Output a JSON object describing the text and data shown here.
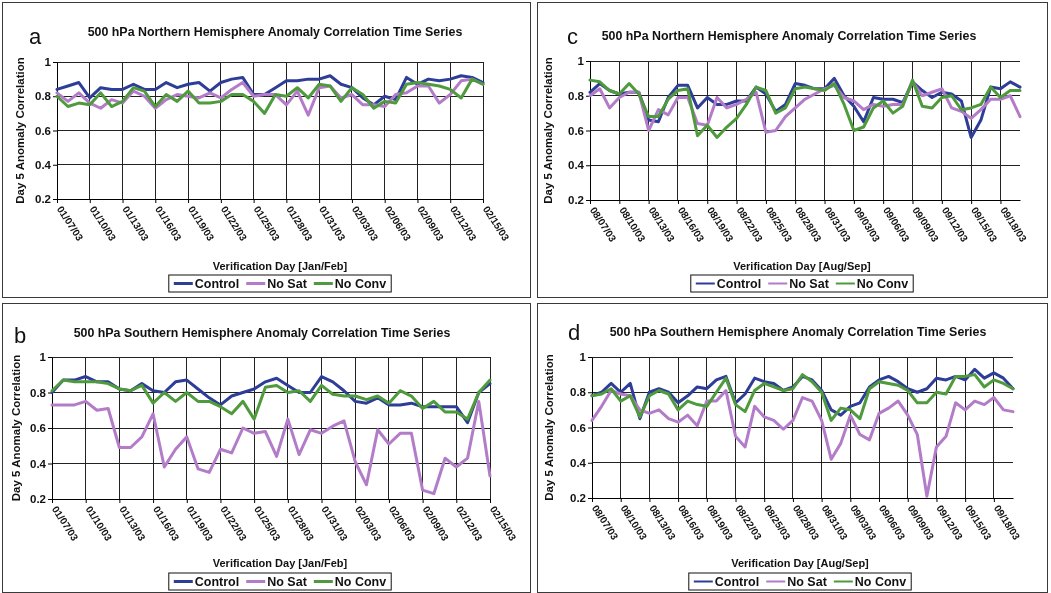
{
  "chart_data": [
    {
      "type": "line",
      "title": "500 hPa Northern Hemisphere Anomaly Correlation Time Series",
      "xlabel": "Verification Day [Jan/Feb]",
      "ylabel": "Day 5 Anomaly Correlation",
      "annotations": [
        "a"
      ],
      "categories": [
        "01/07/03",
        null,
        null,
        "01/10/03",
        null,
        null,
        "01/13/03",
        null,
        null,
        "01/16/03",
        null,
        null,
        "01/19/03",
        null,
        null,
        "01/22/03",
        null,
        null,
        "01/25/03",
        null,
        null,
        "01/28/03",
        null,
        null,
        "01/31/03",
        null,
        null,
        "02/03/03",
        null,
        null,
        "02/06/03",
        null,
        null,
        "02/09/03",
        null,
        null,
        "02/12/03",
        null,
        null,
        "02/15/03"
      ],
      "series": [
        {
          "name": "Control",
          "color": "#2e3d98",
          "values": [
            0.84,
            0.86,
            0.88,
            0.79,
            0.85,
            0.84,
            0.84,
            0.87,
            0.84,
            0.84,
            0.88,
            0.85,
            0.87,
            0.88,
            0.83,
            0.88,
            0.9,
            0.91,
            0.81,
            0.81,
            0.85,
            0.89,
            0.89,
            0.9,
            0.9,
            0.92,
            0.87,
            0.85,
            0.79,
            0.75,
            0.8,
            0.78,
            0.91,
            0.87,
            0.9,
            0.89,
            0.9,
            0.92,
            0.91,
            0.88
          ]
        },
        {
          "name": "No Sat",
          "color": "#b37cc8",
          "values": [
            0.82,
            0.77,
            0.82,
            0.76,
            0.73,
            0.78,
            0.76,
            0.83,
            0.8,
            0.73,
            0.78,
            0.81,
            0.8,
            0.79,
            0.82,
            0.79,
            0.84,
            0.88,
            0.8,
            0.81,
            0.81,
            0.75,
            0.83,
            0.69,
            0.85,
            0.86,
            0.79,
            0.81,
            0.75,
            0.75,
            0.74,
            0.81,
            0.82,
            0.86,
            0.86,
            0.76,
            0.81,
            0.89,
            0.9,
            0.87
          ]
        },
        {
          "name": "No Conv",
          "color": "#4e9a3c",
          "values": [
            0.8,
            0.74,
            0.76,
            0.75,
            0.82,
            0.74,
            0.77,
            0.85,
            0.83,
            0.74,
            0.81,
            0.77,
            0.83,
            0.76,
            0.76,
            0.77,
            0.81,
            0.81,
            0.77,
            0.7,
            0.81,
            0.8,
            0.85,
            0.79,
            0.87,
            0.86,
            0.77,
            0.85,
            0.81,
            0.73,
            0.77,
            0.76,
            0.87,
            0.88,
            0.87,
            0.86,
            0.84,
            0.79,
            0.9,
            0.87
          ]
        }
      ],
      "ylim": [
        0.2,
        1
      ],
      "yticks": [
        0.2,
        0.4,
        0.6,
        0.8,
        1
      ],
      "grid": true,
      "legend": "bottom"
    },
    {
      "type": "line",
      "title": "500 hPa Northern Hemisphere Anomaly Correlation Time Series",
      "xlabel": "Verification Day [Aug/Sep]",
      "ylabel": "Day 5 Anomaly Correlation",
      "annotations": [
        "c"
      ],
      "categories": [
        "08/07/03",
        null,
        null,
        "08/10/03",
        null,
        null,
        "08/13/03",
        null,
        null,
        "08/16/03",
        null,
        null,
        "08/19/03",
        null,
        null,
        "08/22/03",
        null,
        null,
        "08/25/03",
        null,
        null,
        "08/28/03",
        null,
        null,
        "08/31/03",
        null,
        null,
        "09/03/03",
        null,
        null,
        "09/06/03",
        null,
        null,
        "09/09/03",
        null,
        null,
        "09/12/03",
        null,
        null,
        "09/15/03",
        null,
        null,
        "09/18/03",
        null,
        null
      ],
      "series": [
        {
          "name": "Control",
          "color": "#2e3d98",
          "values": [
            0.82,
            0.87,
            0.83,
            0.81,
            0.82,
            0.82,
            0.66,
            0.65,
            0.79,
            0.86,
            0.86,
            0.73,
            0.79,
            0.75,
            0.75,
            0.77,
            0.77,
            0.85,
            0.81,
            0.71,
            0.75,
            0.87,
            0.86,
            0.84,
            0.84,
            0.9,
            0.8,
            0.74,
            0.65,
            0.79,
            0.78,
            0.78,
            0.76,
            0.88,
            0.83,
            0.79,
            0.82,
            0.81,
            0.77,
            0.56,
            0.66,
            0.85,
            0.84,
            0.88,
            0.85
          ]
        },
        {
          "name": "No Sat",
          "color": "#b37cc8",
          "values": [
            0.8,
            0.84,
            0.73,
            0.79,
            0.82,
            0.82,
            0.6,
            0.72,
            0.69,
            0.79,
            0.79,
            0.64,
            0.63,
            0.79,
            0.73,
            0.75,
            0.78,
            0.82,
            0.59,
            0.6,
            0.68,
            0.73,
            0.78,
            0.81,
            0.84,
            0.86,
            0.79,
            0.77,
            0.72,
            0.75,
            0.74,
            0.75,
            0.75,
            0.88,
            0.8,
            0.82,
            0.84,
            0.73,
            0.71,
            0.67,
            0.72,
            0.78,
            0.78,
            0.8,
            0.68
          ]
        },
        {
          "name": "No Conv",
          "color": "#4e9a3c",
          "values": [
            0.89,
            0.88,
            0.83,
            0.81,
            0.87,
            0.81,
            0.68,
            0.68,
            0.78,
            0.83,
            0.84,
            0.57,
            0.63,
            0.56,
            0.62,
            0.67,
            0.75,
            0.85,
            0.83,
            0.7,
            0.73,
            0.84,
            0.85,
            0.84,
            0.83,
            0.87,
            0.75,
            0.6,
            0.62,
            0.73,
            0.77,
            0.7,
            0.74,
            0.89,
            0.74,
            0.73,
            0.79,
            0.8,
            0.72,
            0.73,
            0.75,
            0.85,
            0.79,
            0.83,
            0.83
          ]
        }
      ],
      "ylim": [
        0.2,
        1
      ],
      "yticks": [
        0.2,
        0.4,
        0.6,
        0.8,
        1
      ],
      "grid": true,
      "legend": "bottom"
    },
    {
      "type": "line",
      "title": "500 hPa Southern Hemisphere Anomaly Correlation Time Series",
      "xlabel": "Verification Day [Jan/Feb]",
      "ylabel": "Day 5 Anomaly Correlation",
      "annotations": [
        "b"
      ],
      "categories": [
        "01/07/03",
        null,
        null,
        "01/10/03",
        null,
        null,
        "01/13/03",
        null,
        null,
        "01/16/03",
        null,
        null,
        "01/19/03",
        null,
        null,
        "01/22/03",
        null,
        null,
        "01/25/03",
        null,
        null,
        "01/28/03",
        null,
        null,
        "01/31/03",
        null,
        null,
        "02/03/03",
        null,
        null,
        "02/06/03",
        null,
        null,
        "02/09/03",
        null,
        null,
        "02/12/03",
        null,
        null,
        "02/15/03"
      ],
      "series": [
        {
          "name": "Control",
          "color": "#2e3d98",
          "values": [
            0.8,
            0.87,
            0.87,
            0.89,
            0.86,
            0.86,
            0.82,
            0.81,
            0.85,
            0.81,
            0.8,
            0.86,
            0.87,
            0.82,
            0.77,
            0.73,
            0.78,
            0.8,
            0.82,
            0.86,
            0.88,
            0.84,
            0.8,
            0.8,
            0.89,
            0.86,
            0.81,
            0.75,
            0.74,
            0.77,
            0.73,
            0.73,
            0.74,
            0.72,
            0.72,
            0.72,
            0.72,
            0.63,
            0.8,
            0.85
          ]
        },
        {
          "name": "No Sat",
          "color": "#b37cc8",
          "values": [
            0.73,
            0.73,
            0.73,
            0.75,
            0.7,
            0.71,
            0.49,
            0.49,
            0.55,
            0.68,
            0.38,
            0.48,
            0.55,
            0.37,
            0.35,
            0.48,
            0.46,
            0.6,
            0.57,
            0.58,
            0.44,
            0.65,
            0.45,
            0.59,
            0.57,
            0.61,
            0.64,
            0.41,
            0.28,
            0.59,
            0.51,
            0.57,
            0.57,
            0.25,
            0.23,
            0.43,
            0.38,
            0.43,
            0.75,
            0.33
          ]
        },
        {
          "name": "No Conv",
          "color": "#4e9a3c",
          "values": [
            0.81,
            0.87,
            0.86,
            0.86,
            0.86,
            0.85,
            0.82,
            0.81,
            0.84,
            0.74,
            0.8,
            0.75,
            0.8,
            0.75,
            0.75,
            0.72,
            0.68,
            0.75,
            0.65,
            0.83,
            0.84,
            0.8,
            0.81,
            0.75,
            0.84,
            0.79,
            0.78,
            0.78,
            0.76,
            0.78,
            0.74,
            0.81,
            0.78,
            0.71,
            0.75,
            0.69,
            0.69,
            0.65,
            0.8,
            0.87
          ]
        }
      ],
      "ylim": [
        0.2,
        1
      ],
      "yticks": [
        0.2,
        0.4,
        0.6,
        0.8,
        1
      ],
      "grid": true,
      "legend": "bottom"
    },
    {
      "type": "line",
      "title": "500 hPa Southern Hemisphere Anomaly Correlation Time Series",
      "xlabel": "Verification Day [Aug/Sep]",
      "ylabel": "Day 5 Anomaly Correlation",
      "annotations": [
        "d"
      ],
      "categories": [
        "08/07/03",
        null,
        null,
        "08/10/03",
        null,
        null,
        "08/13/03",
        null,
        null,
        "08/16/03",
        null,
        null,
        "08/19/03",
        null,
        null,
        "08/22/03",
        null,
        null,
        "08/25/03",
        null,
        null,
        "08/28/03",
        null,
        null,
        "08/31/03",
        null,
        null,
        "09/03/03",
        null,
        null,
        "09/06/03",
        null,
        null,
        "09/09/03",
        null,
        null,
        "09/12/03",
        null,
        null,
        "09/15/03",
        null,
        null,
        "09/18/03",
        null,
        null
      ],
      "series": [
        {
          "name": "Control",
          "color": "#2e3d98",
          "values": [
            0.78,
            0.8,
            0.85,
            0.8,
            0.85,
            0.65,
            0.8,
            0.82,
            0.8,
            0.74,
            0.78,
            0.83,
            0.82,
            0.87,
            0.89,
            0.74,
            0.79,
            0.88,
            0.86,
            0.85,
            0.81,
            0.83,
            0.89,
            0.87,
            0.81,
            0.7,
            0.67,
            0.72,
            0.74,
            0.83,
            0.87,
            0.89,
            0.86,
            0.82,
            0.8,
            0.82,
            0.88,
            0.87,
            0.89,
            0.87,
            0.93,
            0.88,
            0.91,
            0.88,
            0.82
          ]
        },
        {
          "name": "No Sat",
          "color": "#b37cc8",
          "values": [
            0.64,
            0.72,
            0.81,
            0.79,
            0.78,
            0.7,
            0.68,
            0.7,
            0.65,
            0.63,
            0.67,
            0.61,
            0.75,
            0.75,
            0.81,
            0.55,
            0.49,
            0.72,
            0.66,
            0.64,
            0.59,
            0.64,
            0.77,
            0.75,
            0.64,
            0.42,
            0.51,
            0.67,
            0.56,
            0.53,
            0.68,
            0.71,
            0.75,
            0.67,
            0.56,
            0.21,
            0.49,
            0.55,
            0.74,
            0.7,
            0.75,
            0.73,
            0.77,
            0.7,
            0.69
          ]
        },
        {
          "name": "No Conv",
          "color": "#4e9a3c",
          "values": [
            0.78,
            0.79,
            0.82,
            0.75,
            0.78,
            0.66,
            0.78,
            0.81,
            0.79,
            0.7,
            0.75,
            0.73,
            0.72,
            0.8,
            0.88,
            0.73,
            0.69,
            0.81,
            0.85,
            0.83,
            0.81,
            0.82,
            0.9,
            0.86,
            0.8,
            0.64,
            0.71,
            0.7,
            0.65,
            0.82,
            0.86,
            0.85,
            0.84,
            0.81,
            0.74,
            0.74,
            0.8,
            0.79,
            0.89,
            0.89,
            0.9,
            0.83,
            0.87,
            0.85,
            0.82
          ]
        }
      ],
      "ylim": [
        0.2,
        1
      ],
      "yticks": [
        0.2,
        0.4,
        0.6,
        0.8,
        1
      ],
      "grid": true,
      "legend": "bottom"
    }
  ]
}
